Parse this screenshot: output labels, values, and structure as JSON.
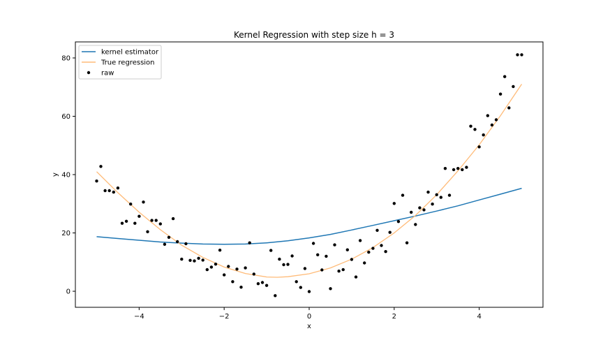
{
  "chart_data": {
    "type": "line",
    "title": "Kernel Regression with step size h = 3",
    "xlabel": "x",
    "ylabel": "y",
    "xlim": [
      -5.5,
      5.5
    ],
    "ylim": [
      -5.5,
      85.5
    ],
    "xticks": [
      -4,
      -2,
      0,
      2,
      4
    ],
    "xtick_labels": [
      "−4",
      "−2",
      "0",
      "2",
      "4"
    ],
    "yticks": [
      0,
      20,
      40,
      60,
      80
    ],
    "ytick_labels": [
      "0",
      "20",
      "40",
      "60",
      "80"
    ],
    "grid": false,
    "legend_position": "top-left",
    "series": [
      {
        "name": "kernel estimator",
        "kind": "line",
        "color": "#1f77b4",
        "x": [
          -5.0,
          -4.5,
          -4.0,
          -3.5,
          -3.0,
          -2.5,
          -2.0,
          -1.5,
          -1.0,
          -0.5,
          0.0,
          0.5,
          1.0,
          1.5,
          2.0,
          2.5,
          3.0,
          3.5,
          4.0,
          4.5,
          5.0
        ],
        "y": [
          18.7,
          18.1,
          17.5,
          16.9,
          16.5,
          16.2,
          16.1,
          16.2,
          16.6,
          17.3,
          18.3,
          19.5,
          21.0,
          22.6,
          24.2,
          25.8,
          27.5,
          29.3,
          31.3,
          33.3,
          35.3
        ]
      },
      {
        "name": "True regression",
        "kind": "line",
        "color": "#ffbb78",
        "x": [
          -5.0,
          -4.5,
          -4.0,
          -3.5,
          -3.0,
          -2.5,
          -2.0,
          -1.5,
          -1.0,
          -0.75,
          -0.5,
          0.0,
          0.5,
          1.0,
          1.5,
          2.0,
          2.5,
          3.0,
          3.5,
          4.0,
          4.5,
          5.0
        ],
        "y": [
          41.0,
          33.8,
          27.1,
          21.1,
          15.8,
          11.6,
          8.3,
          6.1,
          4.9,
          4.8,
          5.0,
          6.0,
          8.0,
          11.0,
          15.0,
          20.0,
          26.0,
          33.1,
          41.3,
          50.2,
          60.2,
          71.0
        ]
      },
      {
        "name": "raw",
        "kind": "scatter",
        "color": "#000000",
        "x": [
          -5.0,
          -4.9,
          -4.8,
          -4.7,
          -4.6,
          -4.5,
          -4.4,
          -4.3,
          -4.2,
          -4.1,
          -4.0,
          -3.9,
          -3.8,
          -3.7,
          -3.6,
          -3.5,
          -3.4,
          -3.3,
          -3.2,
          -3.1,
          -3.0,
          -2.9,
          -2.8,
          -2.7,
          -2.6,
          -2.5,
          -2.4,
          -2.3,
          -2.2,
          -2.1,
          -2.0,
          -1.9,
          -1.8,
          -1.7,
          -1.6,
          -1.5,
          -1.4,
          -1.3,
          -1.2,
          -1.1,
          -1.0,
          -0.9,
          -0.8,
          -0.7,
          -0.6,
          -0.5,
          -0.4,
          -0.3,
          -0.2,
          -0.1,
          0.0,
          0.1,
          0.2,
          0.3,
          0.4,
          0.5,
          0.6,
          0.7,
          0.8,
          0.9,
          1.0,
          1.1,
          1.2,
          1.3,
          1.4,
          1.5,
          1.6,
          1.7,
          1.8,
          1.9,
          2.0,
          2.1,
          2.2,
          2.3,
          2.4,
          2.5,
          2.6,
          2.7,
          2.8,
          2.9,
          3.0,
          3.1,
          3.2,
          3.3,
          3.4,
          3.5,
          3.6,
          3.7,
          3.8,
          3.9,
          4.0,
          4.1,
          4.2,
          4.3,
          4.4,
          4.5,
          4.6,
          4.7,
          4.8,
          4.9,
          5.0
        ],
        "y": [
          37.8,
          42.8,
          34.5,
          34.5,
          34.0,
          35.4,
          23.3,
          24.0,
          29.9,
          23.3,
          25.7,
          30.6,
          20.4,
          24.3,
          24.3,
          23.1,
          16.1,
          18.5,
          24.9,
          17.0,
          11.0,
          16.3,
          10.6,
          10.4,
          11.3,
          10.7,
          7.4,
          8.3,
          9.3,
          14.1,
          5.6,
          8.5,
          3.3,
          7.6,
          1.4,
          8.0,
          16.6,
          5.9,
          2.6,
          3.0,
          2.0,
          14.0,
          -1.5,
          11.0,
          9.1,
          9.2,
          12.1,
          3.3,
          1.3,
          7.8,
          -0.1,
          16.4,
          12.5,
          7.3,
          12.0,
          0.9,
          15.9,
          6.9,
          7.4,
          14.2,
          10.9,
          4.9,
          17.4,
          9.7,
          13.4,
          14.7,
          20.9,
          15.7,
          13.6,
          20.2,
          30.1,
          23.9,
          32.9,
          16.6,
          27.1,
          22.9,
          28.6,
          27.9,
          34.0,
          29.9,
          33.1,
          32.2,
          42.1,
          32.9,
          41.7,
          42.1,
          41.7,
          42.5,
          56.6,
          55.5,
          49.5,
          53.6,
          60.2,
          57.0,
          58.8,
          67.6,
          73.6,
          62.9,
          70.2,
          81.1,
          81.1
        ]
      }
    ]
  }
}
